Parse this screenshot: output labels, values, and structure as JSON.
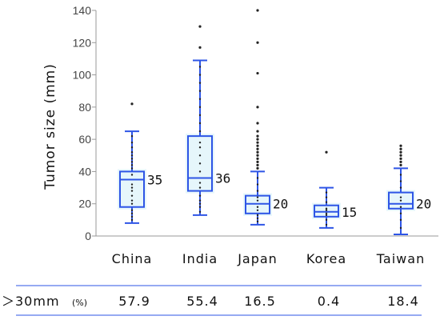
{
  "chart_data": {
    "type": "boxplot",
    "ylabel": "Tumor size (mm)",
    "ylim": [
      0,
      140
    ],
    "yticks": [
      0,
      20,
      40,
      60,
      80,
      100,
      120,
      140
    ],
    "categories": [
      "China",
      "India",
      "Japan",
      "Korea",
      "Taiwan"
    ],
    "colors": {
      "box": "#2e55e6",
      "fill": "#e6f6fb",
      "points": "#222222",
      "axis": "#999999",
      "rule": "#2e55e6"
    },
    "boxes": [
      {
        "category": "China",
        "min": 8,
        "q1": 18,
        "median": 35,
        "q3": 40,
        "max": 65,
        "median_label": "35",
        "outliers": [
          82
        ],
        "inner_points": [
          10,
          12,
          14,
          16,
          20,
          22,
          25,
          28,
          30,
          32,
          38,
          42,
          44,
          46,
          48,
          50,
          52,
          55,
          58,
          62
        ]
      },
      {
        "category": "India",
        "min": 13,
        "q1": 28,
        "median": 36,
        "q3": 62,
        "max": 109,
        "median_label": "36",
        "outliers": [
          117,
          130
        ],
        "inner_points": [
          15,
          18,
          20,
          22,
          25,
          30,
          33,
          40,
          45,
          50,
          55,
          58,
          65,
          70,
          75,
          80,
          85,
          90,
          95,
          100,
          105
        ]
      },
      {
        "category": "Japan",
        "min": 7,
        "q1": 14,
        "median": 20,
        "q3": 25,
        "max": 40,
        "median_label": "20",
        "outliers": [
          42,
          44,
          46,
          48,
          50,
          52,
          54,
          56,
          58,
          60,
          62,
          65,
          70,
          80,
          101,
          120,
          140
        ],
        "inner_points": [
          9,
          11,
          13,
          16,
          18,
          22,
          24,
          28,
          32,
          36
        ]
      },
      {
        "category": "Korea",
        "min": 5,
        "q1": 12,
        "median": 15,
        "q3": 19,
        "max": 30,
        "median_label": "15",
        "outliers": [
          52
        ],
        "inner_points": [
          7,
          10,
          13,
          14,
          16,
          17,
          21,
          24,
          27
        ]
      },
      {
        "category": "Taiwan",
        "min": 1,
        "q1": 17,
        "median": 20,
        "q3": 27,
        "max": 42,
        "median_label": "20",
        "outliers": [
          44,
          46,
          48,
          50,
          52,
          54,
          56
        ],
        "inner_points": [
          5,
          10,
          14,
          18,
          22,
          24,
          30,
          34,
          38
        ]
      }
    ],
    "table": {
      "row_label_main": "＞30mm",
      "row_label_unit": "(%)",
      "values": [
        "57.9",
        "55.4",
        "16.5",
        "0.4",
        "18.4"
      ]
    }
  }
}
